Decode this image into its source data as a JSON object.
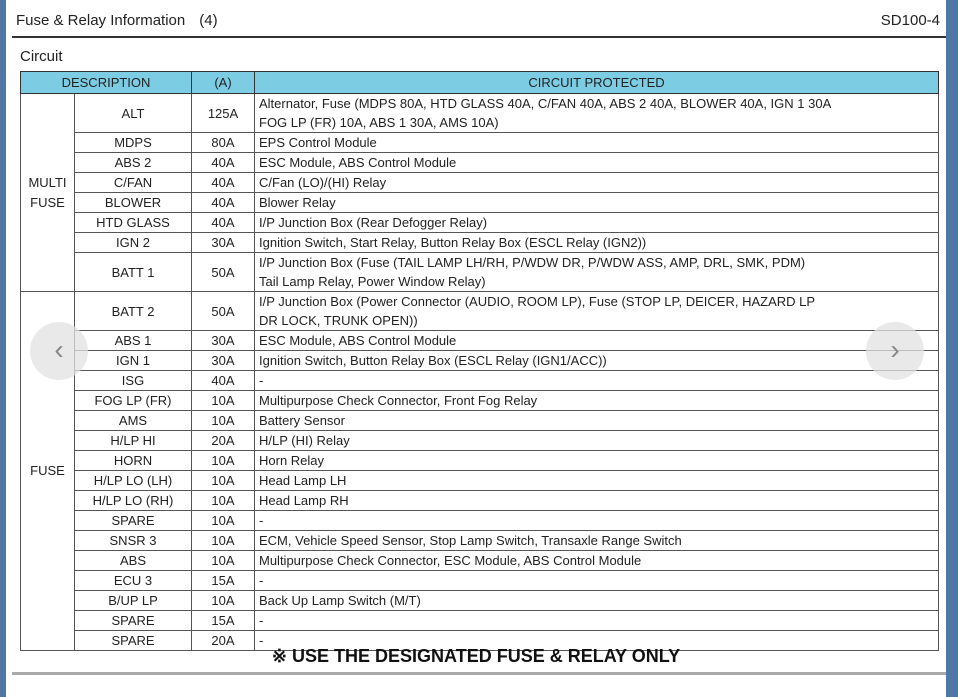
{
  "header": {
    "title": "Fuse & Relay Information",
    "page_num": "(4)",
    "code": "SD100-4"
  },
  "section": "Circuit",
  "table": {
    "headers": {
      "description": "DESCRIPTION",
      "amps": "(A)",
      "circuit": "CIRCUIT PROTECTED"
    },
    "groups": [
      {
        "label": "MULTI FUSE",
        "rows": [
          {
            "name": "ALT",
            "amps": "125A",
            "circuit": "Alternator, Fuse (MDPS 80A, HTD GLASS 40A, C/FAN 40A, ABS 2 40A, BLOWER 40A, IGN 1 30A",
            "circuit2": "FOG LP (FR) 10A, ABS 1 30A, AMS 10A)"
          },
          {
            "name": "MDPS",
            "amps": "80A",
            "circuit": "EPS Control Module"
          },
          {
            "name": "ABS 2",
            "amps": "40A",
            "circuit": "ESC Module, ABS Control Module"
          },
          {
            "name": "C/FAN",
            "amps": "40A",
            "circuit": "C/Fan (LO)/(HI) Relay"
          },
          {
            "name": "BLOWER",
            "amps": "40A",
            "circuit": "Blower Relay"
          },
          {
            "name": "HTD GLASS",
            "amps": "40A",
            "circuit": "I/P Junction Box (Rear Defogger Relay)"
          },
          {
            "name": "IGN 2",
            "amps": "30A",
            "circuit": "Ignition Switch, Start Relay, Button Relay Box (ESCL Relay (IGN2))"
          },
          {
            "name": "BATT 1",
            "amps": "50A",
            "circuit": "I/P Junction Box (Fuse (TAIL LAMP LH/RH, P/WDW DR, P/WDW ASS, AMP, DRL, SMK, PDM)",
            "circuit2": "Tail Lamp Relay, Power Window Relay)"
          }
        ]
      },
      {
        "label": "FUSE",
        "rows": [
          {
            "name": "BATT 2",
            "amps": "50A",
            "circuit": "I/P Junction Box (Power Connector (AUDIO, ROOM LP), Fuse (STOP LP, DEICER, HAZARD LP",
            "circuit2": "DR LOCK, TRUNK OPEN))"
          },
          {
            "name": "ABS 1",
            "amps": "30A",
            "circuit": "ESC Module, ABS Control Module"
          },
          {
            "name": "IGN 1",
            "amps": "30A",
            "circuit": "Ignition Switch, Button Relay Box (ESCL Relay (IGN1/ACC))"
          },
          {
            "name": "ISG",
            "amps": "40A",
            "circuit": "-"
          },
          {
            "name": "FOG LP (FR)",
            "amps": "10A",
            "circuit": "Multipurpose Check Connector, Front Fog Relay"
          },
          {
            "name": "AMS",
            "amps": "10A",
            "circuit": "Battery Sensor"
          },
          {
            "name": "H/LP HI",
            "amps": "20A",
            "circuit": "H/LP (HI) Relay"
          },
          {
            "name": "HORN",
            "amps": "10A",
            "circuit": "Horn Relay"
          },
          {
            "name": "H/LP LO (LH)",
            "amps": "10A",
            "circuit": "Head Lamp LH"
          },
          {
            "name": "H/LP LO (RH)",
            "amps": "10A",
            "circuit": "Head Lamp RH"
          },
          {
            "name": "SPARE",
            "amps": "10A",
            "circuit": "-"
          },
          {
            "name": "SNSR 3",
            "amps": "10A",
            "circuit": "ECM, Vehicle Speed Sensor, Stop Lamp Switch, Transaxle Range Switch"
          },
          {
            "name": "ABS",
            "amps": "10A",
            "circuit": "Multipurpose Check Connector, ESC Module, ABS Control Module"
          },
          {
            "name": "ECU 3",
            "amps": "15A",
            "circuit": "-"
          },
          {
            "name": "B/UP LP",
            "amps": "10A",
            "circuit": "Back Up Lamp Switch (M/T)"
          },
          {
            "name": "SPARE",
            "amps": "15A",
            "circuit": "-"
          },
          {
            "name": "SPARE",
            "amps": "20A",
            "circuit": "-"
          }
        ]
      }
    ]
  },
  "footer": "※ USE THE DESIGNATED FUSE & RELAY ONLY",
  "nav": {
    "prev": "‹",
    "next": "›"
  }
}
